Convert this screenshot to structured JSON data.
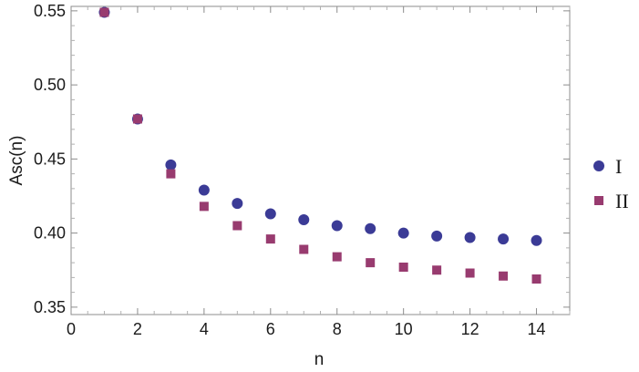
{
  "chart_data": {
    "type": "scatter",
    "title": "",
    "xlabel": "n",
    "ylabel": "Asc(n)",
    "xlim": [
      0,
      15
    ],
    "ylim": [
      0.345,
      0.553
    ],
    "xticks": [
      0,
      2,
      4,
      6,
      8,
      10,
      12,
      14
    ],
    "xtick_labels": [
      "0",
      "2",
      "4",
      "6",
      "8",
      "10",
      "12",
      "14"
    ],
    "yticks": [
      0.35,
      0.4,
      0.45,
      0.5,
      0.55
    ],
    "ytick_labels": [
      "0.35",
      "0.40",
      "0.45",
      "0.50",
      "0.55"
    ],
    "grid": false,
    "legend_position": "right",
    "series": [
      {
        "name": "I",
        "marker": "circle",
        "color": "#3b3b96",
        "x": [
          1,
          2,
          3,
          4,
          5,
          6,
          7,
          8,
          9,
          10,
          11,
          12,
          13,
          14
        ],
        "y": [
          0.549,
          0.477,
          0.446,
          0.429,
          0.42,
          0.413,
          0.409,
          0.405,
          0.403,
          0.4,
          0.398,
          0.397,
          0.396,
          0.395
        ]
      },
      {
        "name": "II",
        "marker": "square",
        "color": "#983b6f",
        "x": [
          1,
          2,
          3,
          4,
          5,
          6,
          7,
          8,
          9,
          10,
          11,
          12,
          13,
          14
        ],
        "y": [
          0.549,
          0.477,
          0.44,
          0.418,
          0.405,
          0.396,
          0.389,
          0.384,
          0.38,
          0.377,
          0.375,
          0.373,
          0.371,
          0.369
        ]
      }
    ]
  }
}
